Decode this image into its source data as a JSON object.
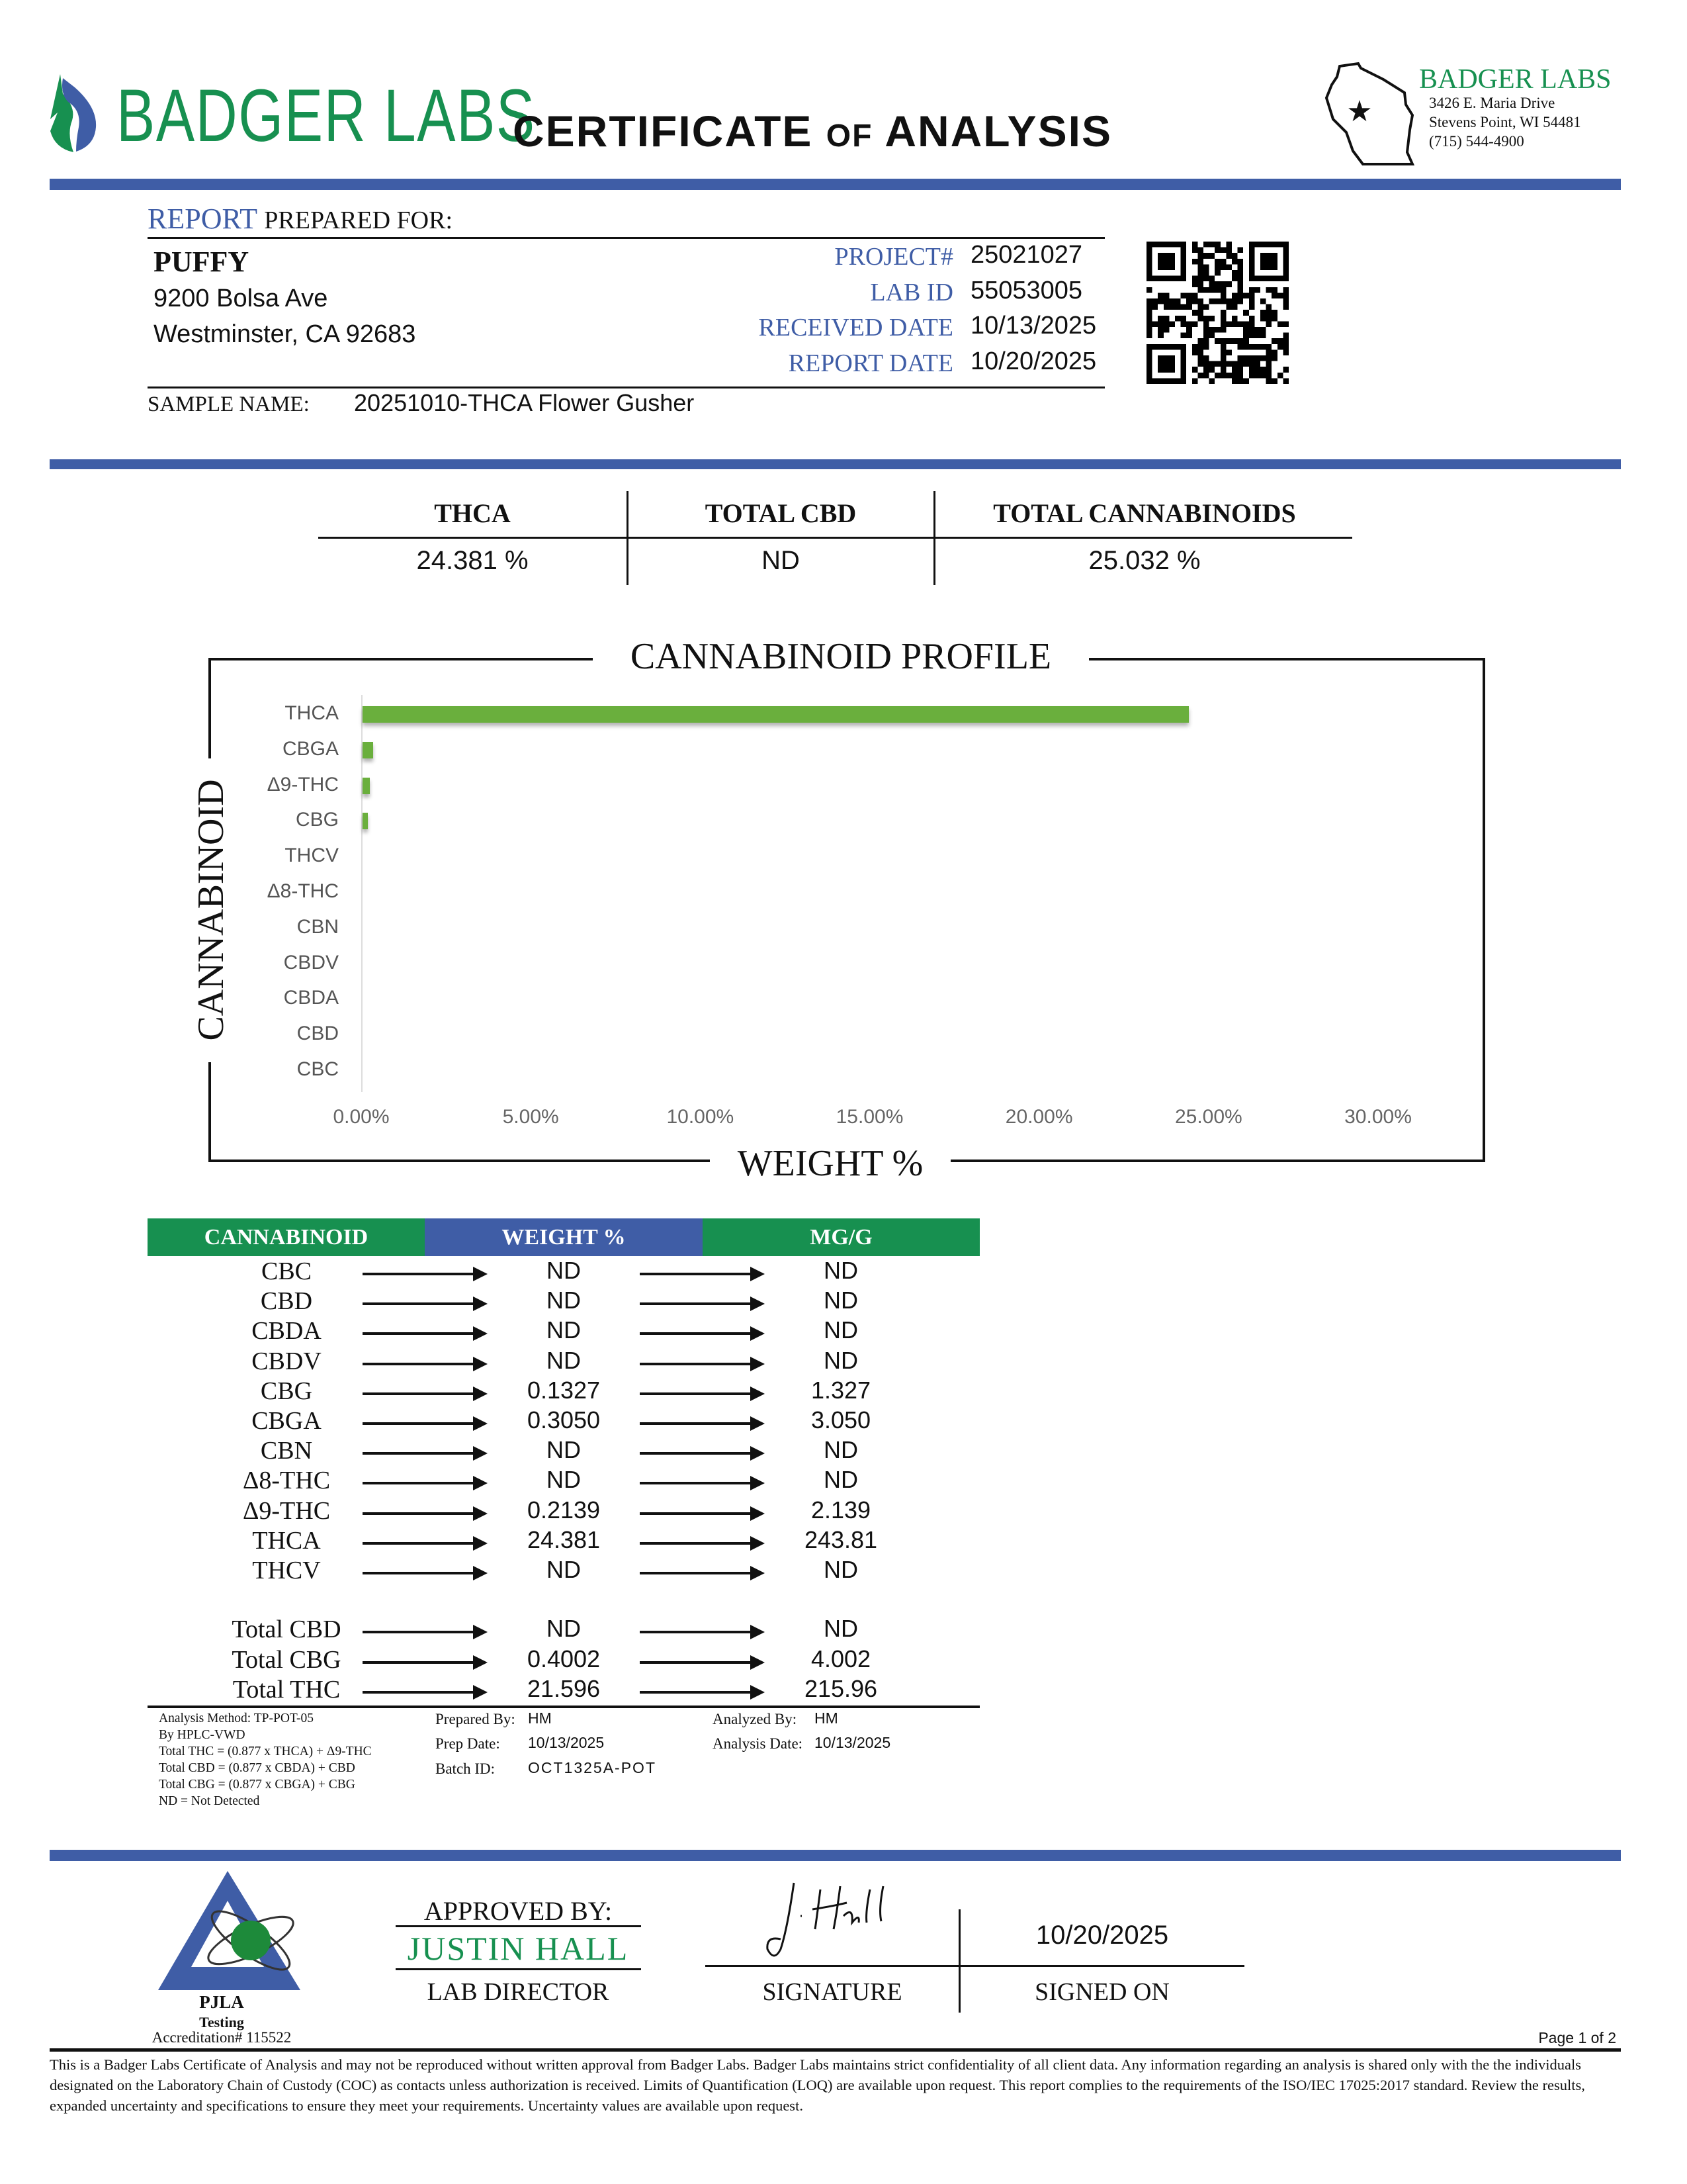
{
  "header": {
    "logo_text": "BADGER LABS",
    "title_main": "CERTIFICATE",
    "title_of": "OF",
    "title_end": "ANALYSIS",
    "lab_name": "BADGER LABS",
    "lab_address1": "3426 E. Maria Drive",
    "lab_address2": "Stevens Point, WI 54481",
    "lab_phone": "(715) 544-4900"
  },
  "client": {
    "report_label": "REPORT",
    "prepared_for": "PREPARED FOR:",
    "name": "PUFFY",
    "address1": "9200 Bolsa Ave",
    "address2": "Westminster, CA 92683",
    "sample_name_label": "SAMPLE NAME:",
    "sample_name": "20251010-THCA Flower Gusher"
  },
  "meta": [
    {
      "label": "PROJECT#",
      "value": "25021027"
    },
    {
      "label": "LAB ID",
      "value": "55053005"
    },
    {
      "label": "RECEIVED DATE",
      "value": "10/13/2025"
    },
    {
      "label": "REPORT DATE",
      "value": "10/20/2025"
    }
  ],
  "summary": [
    {
      "label": "THCA",
      "value": "24.381 %"
    },
    {
      "label": "TOTAL CBD",
      "value": "ND"
    },
    {
      "label": "TOTAL CANNABINOIDS",
      "value": "25.032 %"
    }
  ],
  "chart_data": {
    "type": "bar",
    "orientation": "horizontal",
    "title": "CANNABINOID PROFILE",
    "xlabel": "WEIGHT %",
    "ylabel": "CANNABINOID",
    "categories": [
      "THCA",
      "CBGA",
      "Δ9-THC",
      "CBG",
      "THCV",
      "Δ8-THC",
      "CBN",
      "CBDV",
      "CBDA",
      "CBD",
      "CBC"
    ],
    "values": [
      24.381,
      0.305,
      0.2139,
      0.1327,
      0,
      0,
      0,
      0,
      0,
      0,
      0
    ],
    "xlim": [
      0,
      30
    ],
    "xticks": [
      "0.00%",
      "5.00%",
      "10.00%",
      "15.00%",
      "20.00%",
      "25.00%",
      "30.00%"
    ],
    "grid": false,
    "bar_color": "#6aaf3d"
  },
  "table": {
    "headers": [
      "CANNABINOID",
      "WEIGHT %",
      "MG/G"
    ],
    "rows": [
      [
        "CBC",
        "ND",
        "ND"
      ],
      [
        "CBD",
        "ND",
        "ND"
      ],
      [
        "CBDA",
        "ND",
        "ND"
      ],
      [
        "CBDV",
        "ND",
        "ND"
      ],
      [
        "CBG",
        "0.1327",
        "1.327"
      ],
      [
        "CBGA",
        "0.3050",
        "3.050"
      ],
      [
        "CBN",
        "ND",
        "ND"
      ],
      [
        "Δ8-THC",
        "ND",
        "ND"
      ],
      [
        "Δ9-THC",
        "0.2139",
        "2.139"
      ],
      [
        "THCA",
        "24.381",
        "243.81"
      ],
      [
        "THCV",
        "ND",
        "ND"
      ]
    ],
    "totals": [
      [
        "Total CBD",
        "ND",
        "ND"
      ],
      [
        "Total CBG",
        "0.4002",
        "4.002"
      ],
      [
        "Total THC",
        "21.596",
        "215.96"
      ]
    ]
  },
  "notes": [
    "Analysis Method: TP-POT-05",
    "By HPLC-VWD",
    "Total THC = (0.877 x  THCA) + Δ9-THC",
    "Total CBD = (0.877 x  CBDA) + CBD",
    "Total CBG = (0.877 x  CBGA) + CBG",
    "ND = Not Detected"
  ],
  "prep": {
    "prepared_by_label": "Prepared By:",
    "prepared_by": "HM",
    "prep_date_label": "Prep Date:",
    "prep_date": "10/13/2025",
    "batch_label": "Batch ID:",
    "batch": "OCT1325A-POT",
    "analyzed_by_label": "Analyzed By:",
    "analyzed_by": "HM",
    "analysis_date_label": "Analysis Date:",
    "analysis_date": "10/13/2025"
  },
  "footer": {
    "pjla": "PJLA",
    "testing": "Testing",
    "accreditation": "Accreditation# 115522",
    "approved_by": "APPROVED BY:",
    "approver": "JUSTIN HALL",
    "role": "LAB DIRECTOR",
    "signature_label": "SIGNATURE",
    "signed_on_label": "SIGNED ON",
    "signed_on": "10/20/2025",
    "page": "Page 1 of 2",
    "disclaimer": "This is a Badger Labs Certificate of Analysis and may not be reproduced without written approval from Badger Labs. Badger Labs maintains strict confidentiality of all client data. Any information regarding an analysis is shared only with the the individuals designated on the Laboratory Chain of Custody (COC) as contacts unless authorization is received. Limits of Quantification (LOQ) are available upon request. This report complies to the requirements of the ISO/IEC 17025:2017 standard. Review the results, expanded uncertainty and specifications to ensure they meet your requirements. Uncertainty values are available upon request."
  },
  "colors": {
    "blue": "#3f5da6",
    "green": "#179050",
    "bar": "#6aaf3d"
  }
}
